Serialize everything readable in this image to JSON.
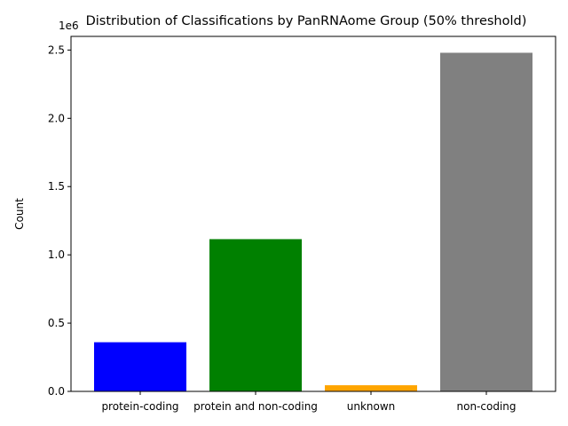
{
  "chart_data": {
    "type": "bar",
    "title": "Distribution of Classifications by PanRNAome Group (50% threshold)",
    "xlabel": "",
    "ylabel": "Count",
    "y_offset_label": "1e6",
    "categories": [
      "protein-coding",
      "protein and non-coding",
      "unknown",
      "non-coding"
    ],
    "values": [
      360000,
      1115000,
      45000,
      2480000
    ],
    "colors": [
      "#0000ff",
      "#008000",
      "#ffa500",
      "#808080"
    ],
    "ylim": [
      0,
      2600000
    ],
    "yticks": [
      0,
      500000,
      1000000,
      1500000,
      2000000,
      2500000
    ],
    "ytick_labels": [
      "0.0",
      "0.5",
      "1.0",
      "1.5",
      "2.0",
      "2.5"
    ],
    "grid": false,
    "legend": "none"
  }
}
